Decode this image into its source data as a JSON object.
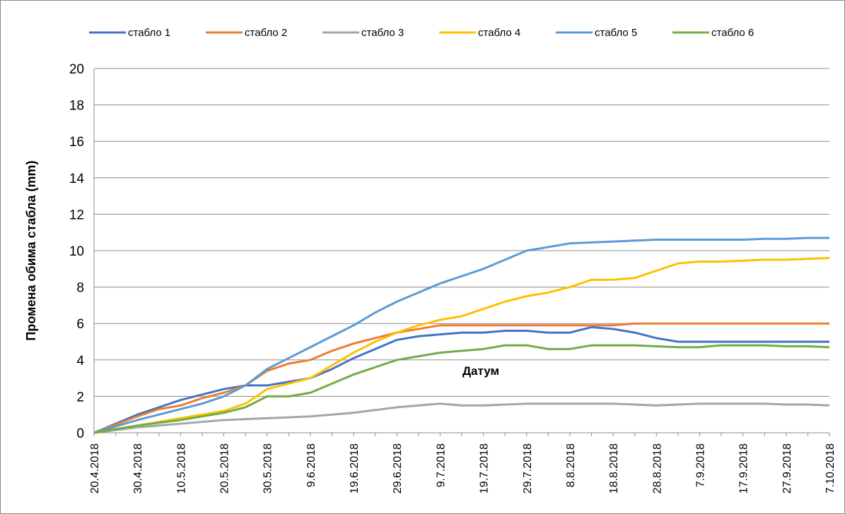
{
  "chart_data": {
    "type": "line",
    "xlabel": "Датум",
    "ylabel": "Промена обима стабла (mm)",
    "categories": [
      "20.4.2018",
      null,
      "30.4.2018",
      null,
      "10.5.2018",
      null,
      "20.5.2018",
      null,
      "30.5.2018",
      null,
      "9.6.2018",
      null,
      "19.6.2018",
      null,
      "29.6.2018",
      null,
      "9.7.2018",
      null,
      "19.7.2018",
      null,
      "29.7.2018",
      null,
      "8.8.2018",
      null,
      "18.8.2018",
      null,
      "28.8.2018",
      null,
      "7.9.2018",
      null,
      "17.9.2018",
      null,
      "27.9.2018",
      null,
      "7.10.2018"
    ],
    "series": [
      {
        "name": "стабло 1",
        "color": "#4472c4",
        "values": [
          0,
          0.5,
          1.0,
          1.4,
          1.8,
          2.1,
          2.4,
          2.6,
          2.6,
          2.8,
          3.0,
          3.5,
          4.1,
          4.6,
          5.1,
          5.3,
          5.4,
          5.5,
          5.5,
          5.6,
          5.6,
          5.5,
          5.5,
          5.8,
          5.7,
          5.5,
          5.2,
          5.0,
          5.0,
          5.0,
          5.0,
          5.0,
          5.0,
          5.0,
          5.0
        ]
      },
      {
        "name": "стабло 2",
        "color": "#ed7d31",
        "values": [
          0,
          0.45,
          0.9,
          1.3,
          1.5,
          1.9,
          2.2,
          2.6,
          3.4,
          3.8,
          4.0,
          4.5,
          4.9,
          5.2,
          5.5,
          5.7,
          5.9,
          5.9,
          5.9,
          5.9,
          5.9,
          5.9,
          5.9,
          5.9,
          5.9,
          6.0,
          6.0,
          6.0,
          6.0,
          6.0,
          6.0,
          6.0,
          6.0,
          6.0,
          6.0
        ]
      },
      {
        "name": "стабло 3",
        "color": "#a5a5a5",
        "values": [
          0,
          0.15,
          0.3,
          0.4,
          0.5,
          0.6,
          0.7,
          0.75,
          0.8,
          0.85,
          0.9,
          1.0,
          1.1,
          1.25,
          1.4,
          1.5,
          1.6,
          1.5,
          1.5,
          1.55,
          1.6,
          1.6,
          1.6,
          1.6,
          1.6,
          1.55,
          1.5,
          1.55,
          1.6,
          1.6,
          1.6,
          1.6,
          1.55,
          1.55,
          1.5
        ]
      },
      {
        "name": "стабло 4",
        "color": "#ffc000",
        "values": [
          0,
          0.2,
          0.4,
          0.6,
          0.8,
          1.0,
          1.2,
          1.6,
          2.4,
          2.7,
          3.0,
          3.7,
          4.4,
          5.0,
          5.5,
          5.9,
          6.2,
          6.4,
          6.8,
          7.2,
          7.5,
          7.7,
          8.0,
          8.4,
          8.4,
          8.5,
          8.9,
          9.3,
          9.4,
          9.4,
          9.45,
          9.5,
          9.5,
          9.55,
          9.6
        ]
      },
      {
        "name": "стабло 5",
        "color": "#5b9bd5",
        "values": [
          0,
          0.35,
          0.7,
          1.0,
          1.3,
          1.6,
          2.0,
          2.6,
          3.5,
          4.1,
          4.7,
          5.3,
          5.9,
          6.6,
          7.2,
          7.7,
          8.2,
          8.6,
          9.0,
          9.5,
          10.0,
          10.2,
          10.4,
          10.45,
          10.5,
          10.55,
          10.6,
          10.6,
          10.6,
          10.6,
          10.6,
          10.65,
          10.65,
          10.7,
          10.7
        ]
      },
      {
        "name": "стабло 6",
        "color": "#70ad47",
        "values": [
          0,
          0.2,
          0.4,
          0.55,
          0.7,
          0.9,
          1.1,
          1.4,
          2.0,
          2.0,
          2.2,
          2.7,
          3.2,
          3.6,
          4.0,
          4.2,
          4.4,
          4.5,
          4.6,
          4.8,
          4.8,
          4.6,
          4.6,
          4.8,
          4.8,
          4.8,
          4.75,
          4.7,
          4.7,
          4.8,
          4.8,
          4.8,
          4.75,
          4.75,
          4.7
        ]
      }
    ],
    "ylim": [
      0,
      20
    ],
    "yticks": [
      0,
      2,
      4,
      6,
      8,
      10,
      12,
      14,
      16,
      18,
      20
    ],
    "grid": true,
    "legend": "top"
  }
}
